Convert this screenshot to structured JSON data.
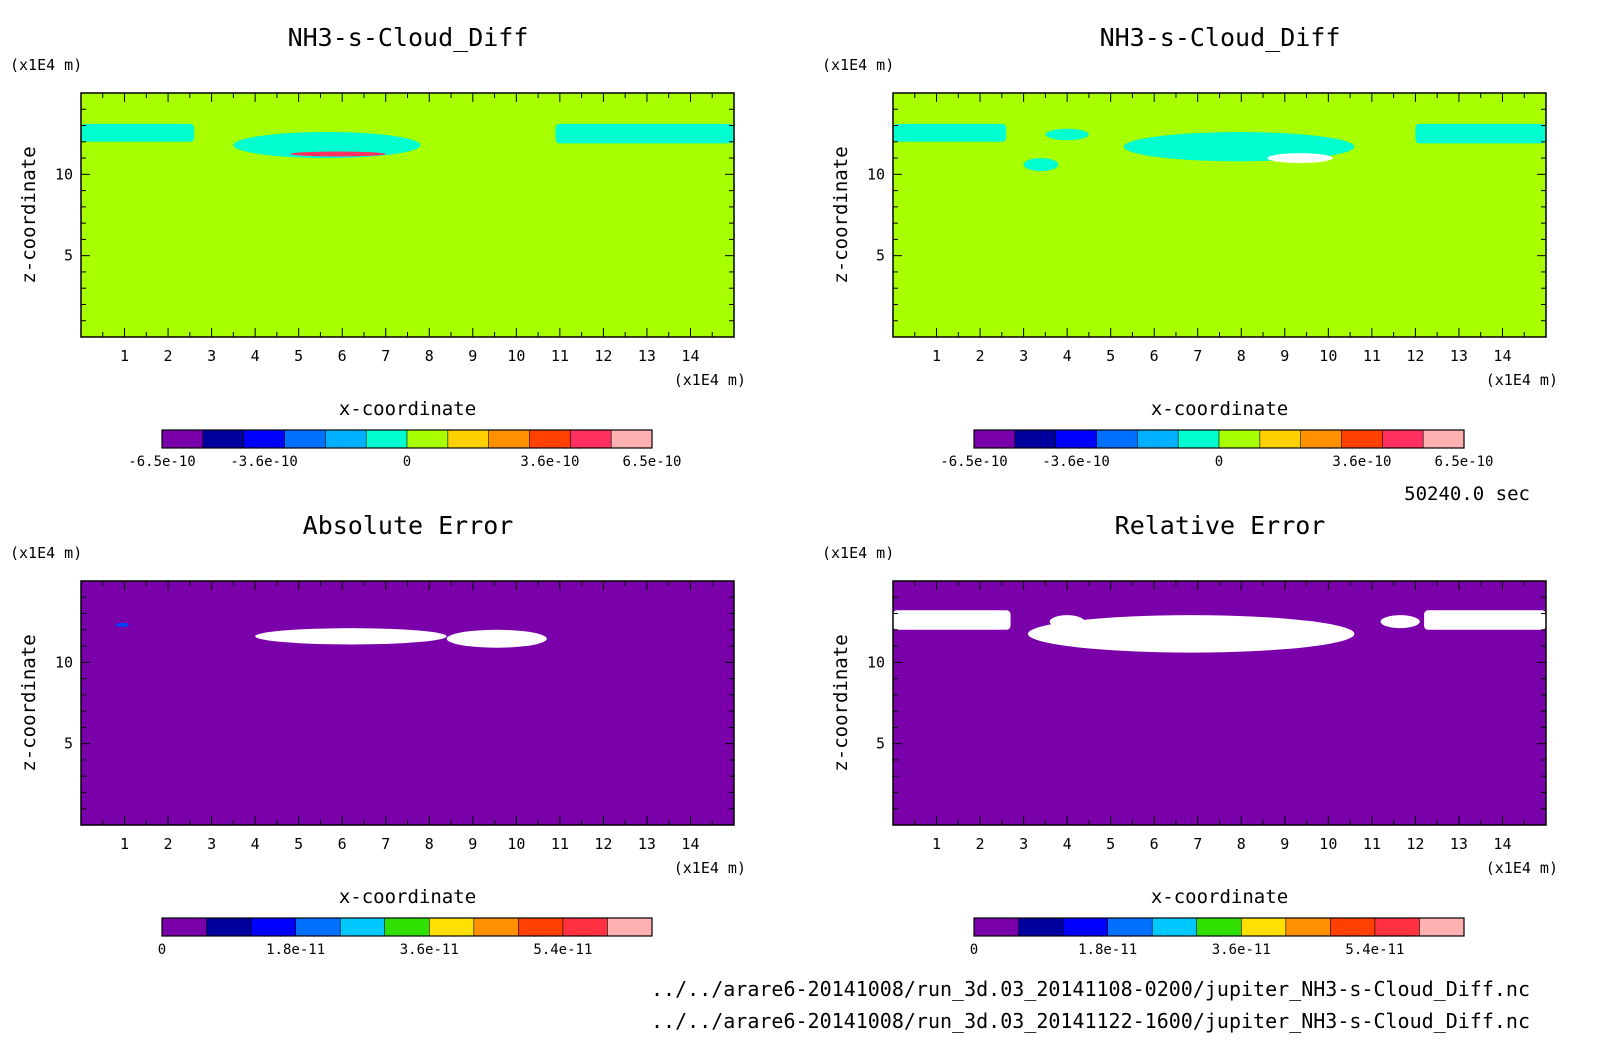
{
  "page": {
    "time_label": "50240.0 sec",
    "files": [
      "../../arare6-20141008/run_3d.03_20141108-0200/jupiter_NH3-s-Cloud_Diff.nc",
      "../../arare6-20141008/run_3d.03_20141122-1600/jupiter_NH3-s-Cloud_Diff.nc"
    ]
  },
  "chart_data": [
    {
      "type": "heatmap",
      "title": "NH3-s-Cloud_Diff",
      "xlabel": "x-coordinate",
      "ylabel": "z-coordinate",
      "x_unit": "(x1E4 m)",
      "y_unit": "(x1E4 m)",
      "xlim": [
        0,
        15
      ],
      "ylim": [
        0,
        15
      ],
      "x_ticks": [
        1,
        2,
        3,
        4,
        5,
        6,
        7,
        8,
        9,
        10,
        11,
        12,
        13,
        14
      ],
      "y_ticks": [
        5,
        10
      ],
      "background_color": "#a8ff00",
      "colorbar": {
        "colors": [
          "#7a00aa",
          "#00009f",
          "#0000ff",
          "#0070ff",
          "#00b0ff",
          "#00ffd0",
          "#a8ff00",
          "#ffd000",
          "#ff9000",
          "#ff4000",
          "#ff3060",
          "#ffb0b0"
        ],
        "tick_labels": [
          "-6.5e-10",
          "-3.6e-10",
          "0",
          "3.6e-10",
          "6.5e-10"
        ],
        "tick_positions": [
          0,
          2.5,
          6,
          9.5,
          12
        ]
      },
      "features": [
        {
          "x": [
            0,
            2.6
          ],
          "z": [
            12.0,
            13.1
          ],
          "color": "#00ffd0"
        },
        {
          "x": [
            3.5,
            7.8
          ],
          "z": [
            11.0,
            12.6
          ],
          "color": "#00ffd0"
        },
        {
          "x": [
            4.8,
            7.0
          ],
          "z": [
            11.1,
            11.4
          ],
          "color": "#ff3060"
        },
        {
          "x": [
            10.9,
            15
          ],
          "z": [
            11.9,
            13.1
          ],
          "color": "#00ffd0"
        }
      ]
    },
    {
      "type": "heatmap",
      "title": "NH3-s-Cloud_Diff",
      "xlabel": "x-coordinate",
      "ylabel": "z-coordinate",
      "x_unit": "(x1E4 m)",
      "y_unit": "(x1E4 m)",
      "xlim": [
        0,
        15
      ],
      "ylim": [
        0,
        15
      ],
      "x_ticks": [
        1,
        2,
        3,
        4,
        5,
        6,
        7,
        8,
        9,
        10,
        11,
        12,
        13,
        14
      ],
      "y_ticks": [
        5,
        10
      ],
      "background_color": "#a8ff00",
      "colorbar": {
        "colors": [
          "#7a00aa",
          "#00009f",
          "#0000ff",
          "#0070ff",
          "#00b0ff",
          "#00ffd0",
          "#a8ff00",
          "#ffd000",
          "#ff9000",
          "#ff4000",
          "#ff3060",
          "#ffb0b0"
        ],
        "tick_labels": [
          "-6.5e-10",
          "-3.6e-10",
          "0",
          "3.6e-10",
          "6.5e-10"
        ],
        "tick_positions": [
          0,
          2.5,
          6,
          9.5,
          12
        ]
      },
      "features": [
        {
          "x": [
            0,
            2.6
          ],
          "z": [
            12.0,
            13.1
          ],
          "color": "#00ffd0"
        },
        {
          "x": [
            3.5,
            4.5
          ],
          "z": [
            12.1,
            12.8
          ],
          "color": "#00ffd0"
        },
        {
          "x": [
            3.0,
            3.8
          ],
          "z": [
            10.2,
            11.0
          ],
          "color": "#00ffd0"
        },
        {
          "x": [
            5.3,
            10.6
          ],
          "z": [
            10.8,
            12.6
          ],
          "color": "#00ffd0"
        },
        {
          "x": [
            8.6,
            10.1
          ],
          "z": [
            10.7,
            11.3
          ],
          "color": "#ffffff"
        },
        {
          "x": [
            12.0,
            15
          ],
          "z": [
            11.9,
            13.1
          ],
          "color": "#00ffd0"
        }
      ]
    },
    {
      "type": "heatmap",
      "title": "Absolute Error",
      "xlabel": "x-coordinate",
      "ylabel": "z-coordinate",
      "x_unit": "(x1E4 m)",
      "y_unit": "(x1E4 m)",
      "xlim": [
        0,
        15
      ],
      "ylim": [
        0,
        15
      ],
      "x_ticks": [
        1,
        2,
        3,
        4,
        5,
        6,
        7,
        8,
        9,
        10,
        11,
        12,
        13,
        14
      ],
      "y_ticks": [
        5,
        10
      ],
      "background_color": "#7a00aa",
      "colorbar": {
        "colors": [
          "#7a00aa",
          "#00009f",
          "#0000ff",
          "#0070ff",
          "#00c8ff",
          "#30e000",
          "#ffe000",
          "#ff9000",
          "#ff4000",
          "#ff3040",
          "#ffb0b0"
        ],
        "tick_labels": [
          "0",
          "1.8e-11",
          "3.6e-11",
          "5.4e-11"
        ],
        "tick_positions": [
          0,
          3,
          6,
          9
        ]
      },
      "features": [
        {
          "x": [
            0.8,
            1.1
          ],
          "z": [
            12.2,
            12.4
          ],
          "color": "#0040ff"
        },
        {
          "x": [
            4.0,
            8.4
          ],
          "z": [
            11.1,
            12.1
          ],
          "color": "#ffffff"
        },
        {
          "x": [
            8.4,
            10.7
          ],
          "z": [
            10.9,
            12.0
          ],
          "color": "#ffffff"
        }
      ]
    },
    {
      "type": "heatmap",
      "title": "Relative Error",
      "xlabel": "x-coordinate",
      "ylabel": "z-coordinate",
      "x_unit": "(x1E4 m)",
      "y_unit": "(x1E4 m)",
      "xlim": [
        0,
        15
      ],
      "ylim": [
        0,
        15
      ],
      "x_ticks": [
        1,
        2,
        3,
        4,
        5,
        6,
        7,
        8,
        9,
        10,
        11,
        12,
        13,
        14
      ],
      "y_ticks": [
        5,
        10
      ],
      "background_color": "#7a00aa",
      "colorbar": {
        "colors": [
          "#7a00aa",
          "#00009f",
          "#0000ff",
          "#0070ff",
          "#00c8ff",
          "#30e000",
          "#ffe000",
          "#ff9000",
          "#ff4000",
          "#ff3040",
          "#ffb0b0"
        ],
        "tick_labels": [
          "0",
          "1.8e-11",
          "3.6e-11",
          "5.4e-11"
        ],
        "tick_positions": [
          0,
          3,
          6,
          9
        ]
      },
      "features": [
        {
          "x": [
            0,
            2.7
          ],
          "z": [
            12.0,
            13.2
          ],
          "color": "#ffffff"
        },
        {
          "x": [
            3.6,
            4.4
          ],
          "z": [
            12.1,
            12.9
          ],
          "color": "#ffffff"
        },
        {
          "x": [
            3.1,
            10.6
          ],
          "z": [
            10.6,
            12.9
          ],
          "color": "#ffffff"
        },
        {
          "x": [
            11.2,
            12.1
          ],
          "z": [
            12.1,
            12.9
          ],
          "color": "#ffffff"
        },
        {
          "x": [
            12.2,
            15
          ],
          "z": [
            12.0,
            13.2
          ],
          "color": "#ffffff"
        }
      ]
    }
  ]
}
